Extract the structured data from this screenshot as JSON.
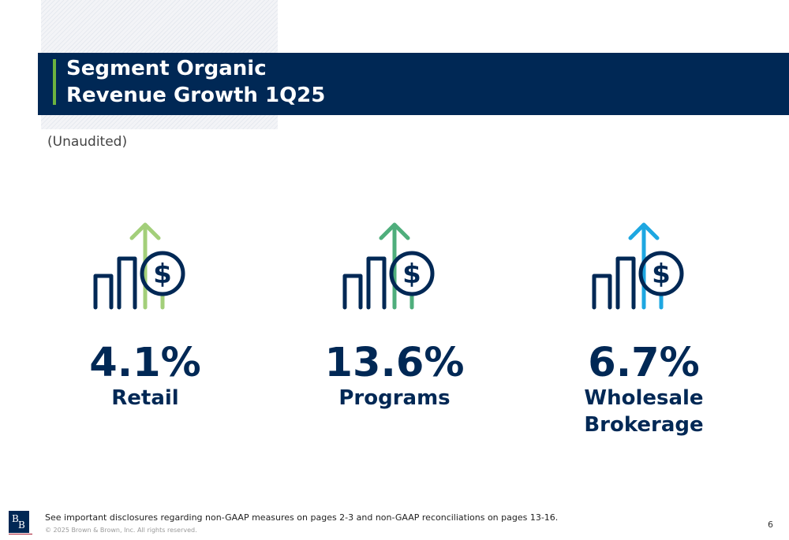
{
  "header": {
    "title_line1": "Segment Organic",
    "title_line2": "Revenue Growth 1Q25",
    "subtitle": "(Unaudited)"
  },
  "segments": [
    {
      "value": "4.1%",
      "label_line1": "Retail",
      "label_line2": "",
      "arrow_color": "#a3cf7a",
      "icon": "growth-chart-dollar-icon"
    },
    {
      "value": "13.6%",
      "label_line1": "Programs",
      "label_line2": "",
      "arrow_color": "#4fae7c",
      "icon": "growth-chart-dollar-icon"
    },
    {
      "value": "6.7%",
      "label_line1": "Wholesale",
      "label_line2": "Brokerage",
      "arrow_color": "#1ea7e1",
      "icon": "growth-chart-dollar-icon"
    }
  ],
  "footer": {
    "logo_text": "BB",
    "disclosure": "See important disclosures regarding non-GAAP measures on pages 2-3 and non-GAAP reconciliations on pages 13-16.",
    "copyright": "© 2025 Brown & Brown, Inc. All rights reserved.",
    "page_number": "6"
  },
  "colors": {
    "navy": "#002855",
    "accent_green": "#6cb33f"
  }
}
